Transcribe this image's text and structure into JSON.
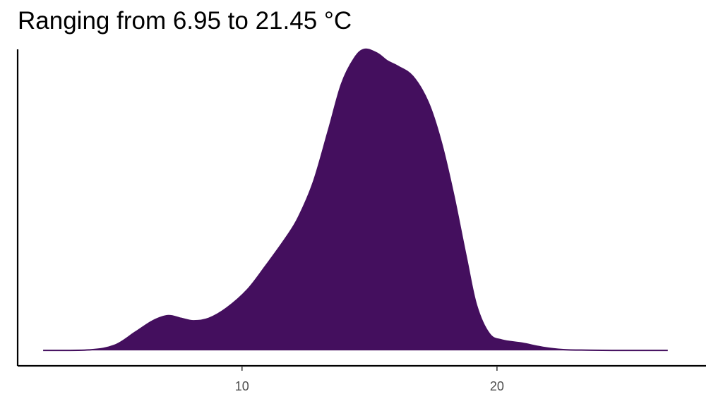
{
  "chart_data": {
    "type": "area",
    "title": "Ranging from 6.95 to 21.45 °C",
    "xlabel": "",
    "ylabel": "",
    "xlim": [
      1.2,
      28.2
    ],
    "ylim": [
      -0.006,
      0.117
    ],
    "grid": false,
    "legend": "none",
    "fill_color": "#440F5E",
    "x_ticks": [
      10,
      20
    ],
    "x_tick_labels": [
      "10",
      "20"
    ],
    "y_ticks": [],
    "x": [
      2.2,
      4.0,
      5.0,
      5.8,
      6.5,
      7.1,
      7.6,
      8.1,
      8.7,
      9.4,
      10.2,
      10.9,
      11.7,
      12.2,
      12.8,
      13.4,
      13.9,
      14.4,
      14.8,
      15.3,
      15.7,
      16.1,
      16.7,
      17.3,
      17.8,
      18.3,
      18.8,
      19.2,
      19.7,
      20.2,
      21.0,
      21.8,
      22.6,
      23.5,
      24.5,
      26.7
    ],
    "y": [
      0.0,
      0.0002,
      0.002,
      0.007,
      0.0115,
      0.0135,
      0.0125,
      0.0115,
      0.0125,
      0.0165,
      0.0235,
      0.0325,
      0.0435,
      0.0515,
      0.0655,
      0.086,
      0.1035,
      0.1135,
      0.117,
      0.1155,
      0.1125,
      0.1105,
      0.1065,
      0.0965,
      0.0815,
      0.0605,
      0.036,
      0.0175,
      0.0065,
      0.004,
      0.0028,
      0.0012,
      0.0003,
      0.0001,
      0.0,
      0.0
    ]
  }
}
